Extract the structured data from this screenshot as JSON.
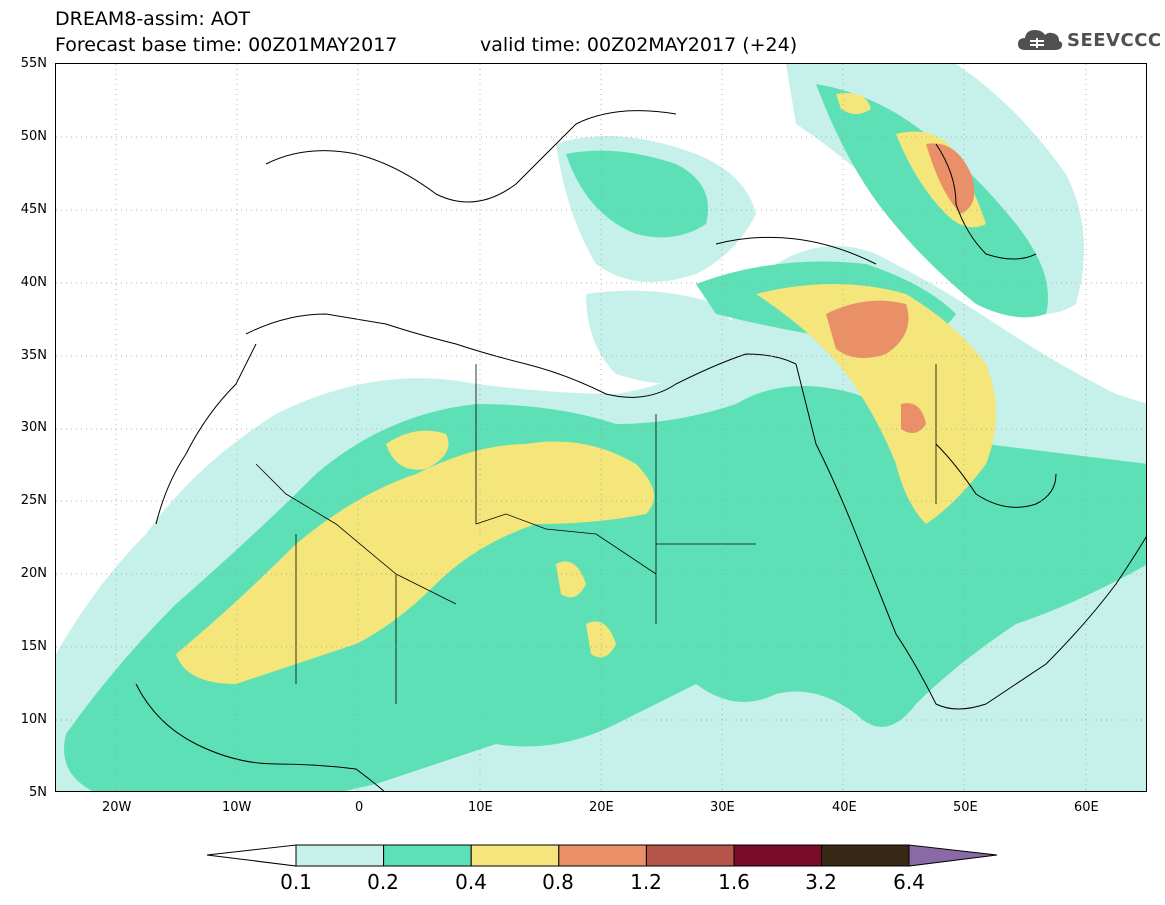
{
  "header": {
    "model_line": "DREAM8-assim: AOT",
    "base_time_line": "Forecast base time: 00Z01MAY2017",
    "valid_time_line": "valid time: 00Z02MAY2017 (+24)"
  },
  "logo": {
    "text": "SEEVCCC",
    "icon": "cloud-icon"
  },
  "map": {
    "region": "North Africa, Europe and Middle East",
    "lon_range": [
      -25,
      65
    ],
    "lat_range": [
      5,
      55
    ],
    "lat_ticks": [
      "55N",
      "50N",
      "45N",
      "40N",
      "35N",
      "30N",
      "25N",
      "20N",
      "15N",
      "10N",
      "5N"
    ],
    "lon_ticks": [
      "20W",
      "10W",
      "0",
      "10E",
      "20E",
      "30E",
      "40E",
      "50E",
      "60E"
    ]
  },
  "colorbar": {
    "labels": [
      "0.1",
      "0.2",
      "0.4",
      "0.8",
      "1.2",
      "1.6",
      "3.2",
      "6.4"
    ],
    "colors": [
      "#c6f0ea",
      "#5ee0b6",
      "#f4e67a",
      "#e99069",
      "#b5554a",
      "#7a0c2a",
      "#3a2816",
      "#8a6aa6"
    ]
  }
}
